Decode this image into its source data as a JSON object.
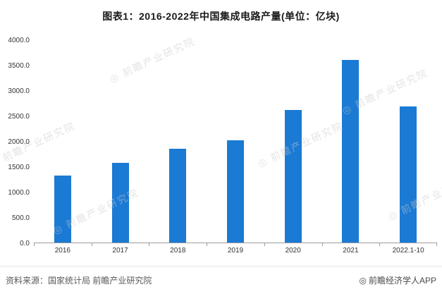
{
  "title": "图表1：2016-2022年中国集成电路产量(单位：亿块)",
  "chart_data": {
    "type": "bar",
    "categories": [
      "2016",
      "2017",
      "2018",
      "2019",
      "2020",
      "2021",
      "2022.1-10"
    ],
    "values": [
      1318,
      1565,
      1850,
      2020,
      2613,
      3594,
      2675
    ],
    "title": "图表1：2016-2022年中国集成电路产量(单位：亿块)",
    "xlabel": "",
    "ylabel": "",
    "ylim": [
      0,
      4000
    ],
    "ytick_step": 500,
    "grid": false,
    "legend": "none",
    "bar_color": "#1a7ad4"
  },
  "watermark": {
    "symbol": "◎",
    "text": "前瞻产业研究院"
  },
  "footer": {
    "source": "资料来源：国家统计局 前瞻产业研究院",
    "credit_symbol": "◎",
    "credit": "前瞻经济学人APP"
  },
  "colors": {
    "bar": "#1a7ad4",
    "title_text": "#1a1a1a",
    "axis_text": "#333333",
    "watermark": "#c9c9c9",
    "footer_text": "#595959"
  }
}
